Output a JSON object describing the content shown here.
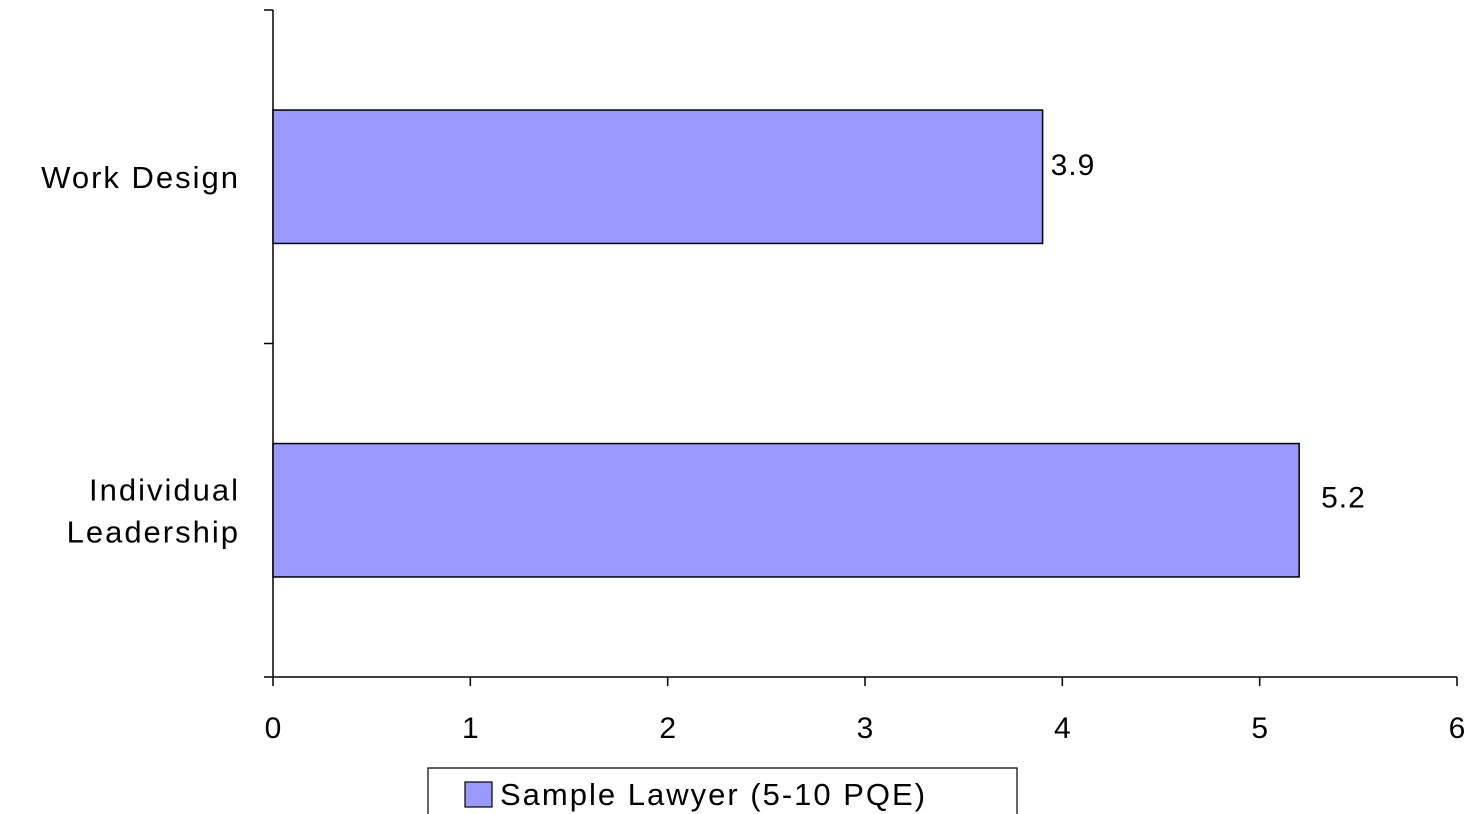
{
  "chart_data": {
    "type": "bar",
    "orientation": "horizontal",
    "categories": [
      [
        "Work Design"
      ],
      [
        "Individual",
        "Leadership"
      ]
    ],
    "series": [
      {
        "name": "Sample Lawyer (5-10 PQE)",
        "values": [
          3.9,
          5.2
        ],
        "color": "#9999ff"
      }
    ],
    "data_labels": [
      "3.9",
      "5.2"
    ],
    "xlim": [
      0,
      6
    ],
    "xticks": [
      "0",
      "1",
      "2",
      "3",
      "4",
      "5",
      "6"
    ],
    "title": "",
    "xlabel": "",
    "ylabel": "",
    "grid": false,
    "legend": "bottom"
  }
}
